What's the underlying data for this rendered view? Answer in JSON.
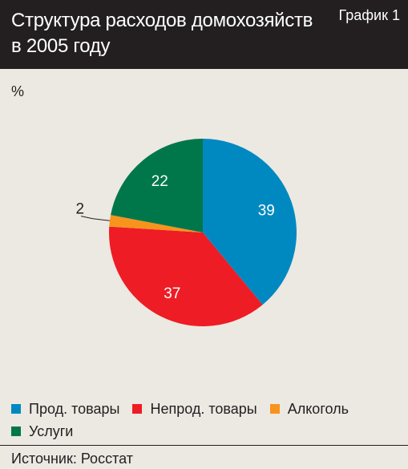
{
  "header": {
    "title": "Структура расходов домохозяйств в 2005 году",
    "chart_number": "График 1"
  },
  "unit_label": "%",
  "source": "Источник: Росстат",
  "colors": {
    "background": "#ece8e2",
    "header_background": "#231f20"
  },
  "chart_data": {
    "type": "pie",
    "title": "Структура расходов домохозяйств в 2005 году",
    "unit": "%",
    "legend_position": "bottom",
    "slices": [
      {
        "label": "Прод. товары",
        "value": 39,
        "value_label": "39",
        "color": "#0089c0"
      },
      {
        "label": "Непрод. товары",
        "value": 37,
        "value_label": "37",
        "color": "#ee1c25"
      },
      {
        "label": "Алкоголь",
        "value": 2,
        "value_label": "2",
        "color": "#f7941d"
      },
      {
        "label": "Услуги",
        "value": 22,
        "value_label": "22",
        "color": "#00774b"
      }
    ]
  }
}
